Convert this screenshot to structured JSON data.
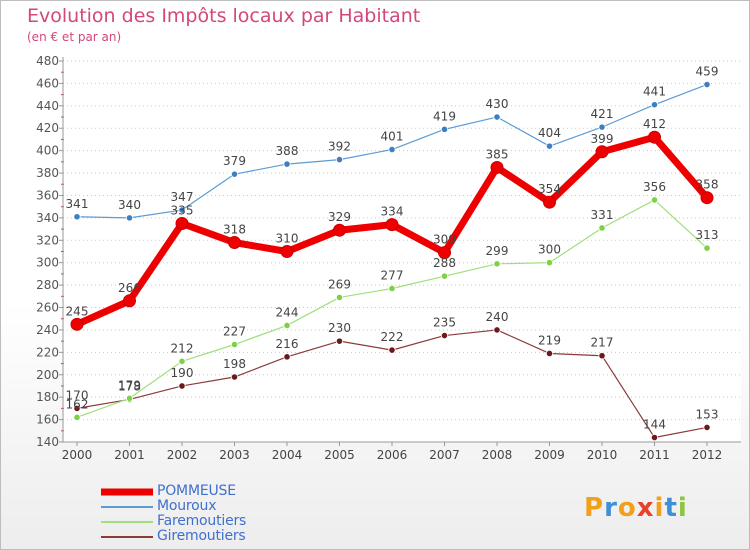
{
  "header": {
    "title": "Evolution des Impôts locaux par Habitant",
    "subtitle": "(en € et par an)"
  },
  "logo": {
    "letters": [
      "P",
      "r",
      "o",
      "x",
      "i",
      "t",
      "i"
    ],
    "colors": [
      "#f29f1c",
      "#3f8fd6",
      "#f29f1c",
      "#e8412c",
      "#f29f1c",
      "#3f8fd6",
      "#8cc63f"
    ]
  },
  "chart_data": {
    "type": "line",
    "title": "Evolution des Impôts locaux par Habitant",
    "subtitle": "(en € et par an)",
    "x": [
      "2000",
      "2001",
      "2002",
      "2003",
      "2004",
      "2005",
      "2006",
      "2007",
      "2008",
      "2009",
      "2010",
      "2011",
      "2012"
    ],
    "ylim": [
      140,
      480
    ],
    "yticks": [
      140,
      160,
      180,
      200,
      220,
      240,
      260,
      280,
      300,
      320,
      340,
      360,
      380,
      400,
      420,
      440,
      460,
      480
    ],
    "grid": "horizontal dotted",
    "legend_position": "bottom-left",
    "series": [
      {
        "name": "POMMEUSE",
        "color": "#ee0000",
        "marker": "#ee0000",
        "width": 7,
        "values": [
          245,
          266,
          335,
          318,
          310,
          329,
          334,
          309,
          385,
          354,
          399,
          412,
          358
        ]
      },
      {
        "name": "Mouroux",
        "color": "#5b9bd5",
        "marker": "#3f7fc0",
        "width": 1.2,
        "values": [
          341,
          340,
          347,
          379,
          388,
          392,
          401,
          419,
          430,
          404,
          421,
          441,
          459
        ]
      },
      {
        "name": "Faremoutiers",
        "color": "#9fe07a",
        "marker": "#7ed046",
        "width": 1.2,
        "values": [
          162,
          179,
          212,
          227,
          244,
          269,
          277,
          288,
          299,
          300,
          331,
          356,
          313
        ]
      },
      {
        "name": "Giremoutiers",
        "color": "#8b3a3a",
        "marker": "#6a1a1a",
        "width": 1.2,
        "values": [
          170,
          178,
          190,
          198,
          216,
          230,
          222,
          235,
          240,
          219,
          217,
          144,
          153
        ]
      }
    ],
    "draw_order": [
      3,
      2,
      1,
      0
    ]
  }
}
